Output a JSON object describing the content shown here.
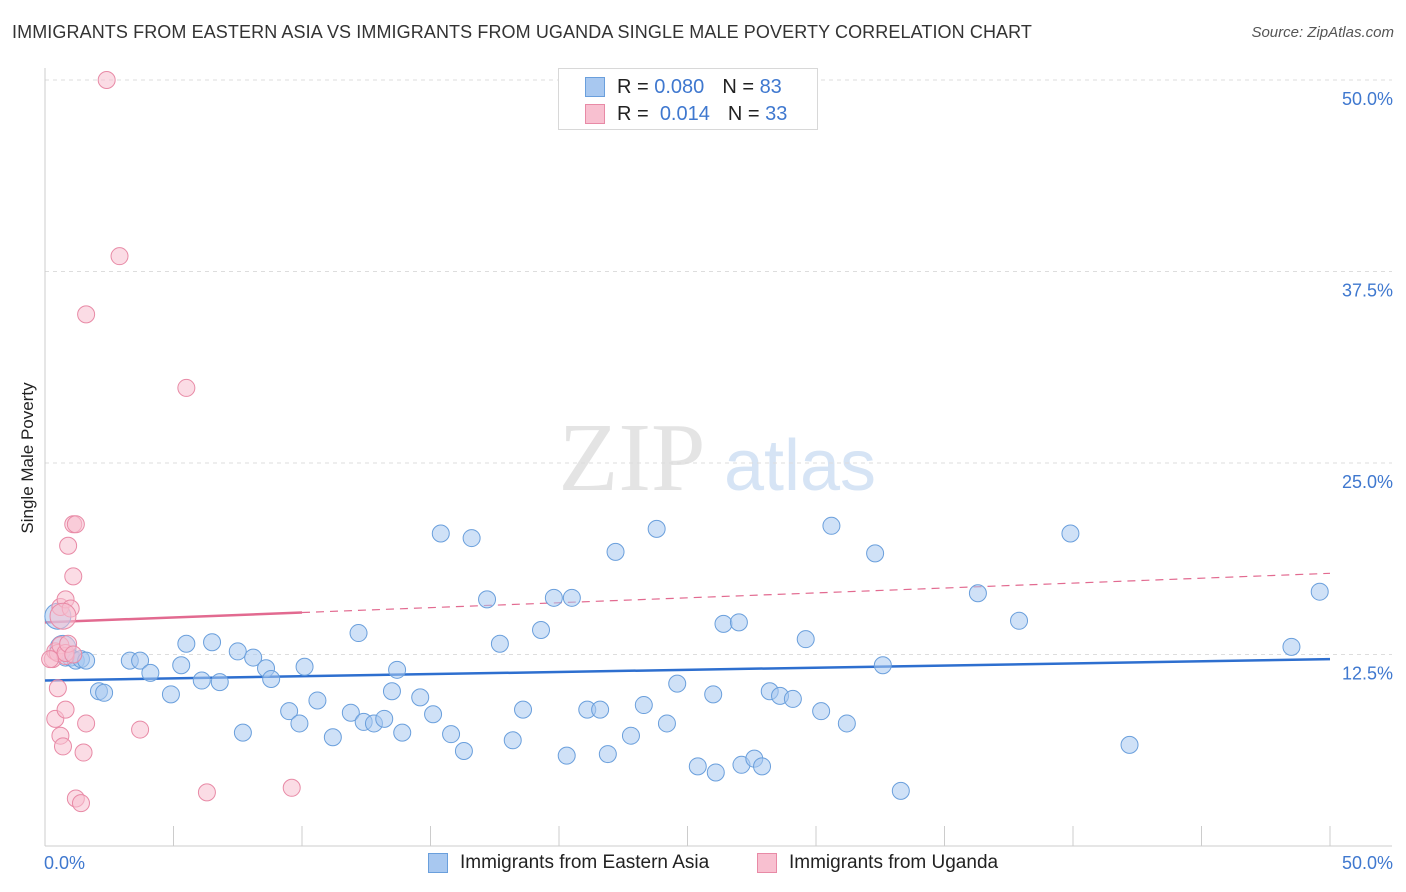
{
  "header": {
    "title": "IMMIGRANTS FROM EASTERN ASIA VS IMMIGRANTS FROM UGANDA SINGLE MALE POVERTY CORRELATION CHART",
    "source": "Source: ZipAtlas.com"
  },
  "watermark": {
    "zip": "ZIP",
    "atlas": "atlas"
  },
  "legend": {
    "rows": [
      {
        "r_label": "R =",
        "r_value": "0.080",
        "n_label": "N =",
        "n_value": "83",
        "color": "#a8c8f0",
        "border": "#6a9fdc"
      },
      {
        "r_label": "R =",
        "r_value": "0.014",
        "n_label": "N =",
        "n_value": "33",
        "color": "#f8c0d0",
        "border": "#e88aa6"
      }
    ]
  },
  "bottom_legend": {
    "series1": "Immigrants from Eastern Asia",
    "series2": "Immigrants from Uganda"
  },
  "chart_data": {
    "type": "scatter",
    "title": "IMMIGRANTS FROM EASTERN ASIA VS IMMIGRANTS FROM UGANDA SINGLE MALE POVERTY CORRELATION CHART",
    "ylabel": "Single Male Poverty",
    "xlabel": "",
    "xlim": [
      0,
      50
    ],
    "ylim": [
      0,
      50
    ],
    "x_tick_labels": [
      "0.0%",
      "50.0%"
    ],
    "y_tick_labels": [
      "12.5%",
      "25.0%",
      "37.5%",
      "50.0%"
    ],
    "y_ticks": [
      12.5,
      25.0,
      37.5,
      50.0
    ],
    "grid": "horizontal dashed",
    "legend_position": "top-center",
    "series": [
      {
        "name": "Immigrants from Eastern Asia",
        "color": "#a8c8f0",
        "stroke": "#6a9fdc",
        "trend_color": "#2e6fcf",
        "trend": {
          "x0": 0,
          "y0": 10.8,
          "x1": 50,
          "y1": 12.2
        },
        "points": [
          [
            0.5,
            15.0
          ],
          [
            0.7,
            12.9
          ],
          [
            0.8,
            12.3
          ],
          [
            1.0,
            12.3
          ],
          [
            1.2,
            12.1
          ],
          [
            1.4,
            12.2
          ],
          [
            1.6,
            12.1
          ],
          [
            2.1,
            10.1
          ],
          [
            2.3,
            10.0
          ],
          [
            3.3,
            12.1
          ],
          [
            3.7,
            12.1
          ],
          [
            4.1,
            11.3
          ],
          [
            4.9,
            9.9
          ],
          [
            5.3,
            11.8
          ],
          [
            5.5,
            13.2
          ],
          [
            6.1,
            10.8
          ],
          [
            6.5,
            13.3
          ],
          [
            6.8,
            10.7
          ],
          [
            7.5,
            12.7
          ],
          [
            7.7,
            7.4
          ],
          [
            8.1,
            12.3
          ],
          [
            8.6,
            11.6
          ],
          [
            8.8,
            10.9
          ],
          [
            9.5,
            8.8
          ],
          [
            9.9,
            8.0
          ],
          [
            10.1,
            11.7
          ],
          [
            10.6,
            9.5
          ],
          [
            11.2,
            7.1
          ],
          [
            11.9,
            8.7
          ],
          [
            12.2,
            13.9
          ],
          [
            12.4,
            8.1
          ],
          [
            12.8,
            8.0
          ],
          [
            13.2,
            8.3
          ],
          [
            13.5,
            10.1
          ],
          [
            13.7,
            11.5
          ],
          [
            13.9,
            7.4
          ],
          [
            14.6,
            9.7
          ],
          [
            15.1,
            8.6
          ],
          [
            15.4,
            20.4
          ],
          [
            15.8,
            7.3
          ],
          [
            16.3,
            6.2
          ],
          [
            16.6,
            20.1
          ],
          [
            17.2,
            16.1
          ],
          [
            17.7,
            13.2
          ],
          [
            18.2,
            6.9
          ],
          [
            18.6,
            8.9
          ],
          [
            19.3,
            14.1
          ],
          [
            19.8,
            16.2
          ],
          [
            20.3,
            5.9
          ],
          [
            20.5,
            16.2
          ],
          [
            21.1,
            8.9
          ],
          [
            21.6,
            8.9
          ],
          [
            21.9,
            6.0
          ],
          [
            22.2,
            19.2
          ],
          [
            22.8,
            7.2
          ],
          [
            23.3,
            9.2
          ],
          [
            23.8,
            20.7
          ],
          [
            24.2,
            8.0
          ],
          [
            24.6,
            10.6
          ],
          [
            25.4,
            5.2
          ],
          [
            26.0,
            9.9
          ],
          [
            26.1,
            4.8
          ],
          [
            26.4,
            14.5
          ],
          [
            27.0,
            14.6
          ],
          [
            27.1,
            5.3
          ],
          [
            27.6,
            5.7
          ],
          [
            27.9,
            5.2
          ],
          [
            28.2,
            10.1
          ],
          [
            28.6,
            9.8
          ],
          [
            29.1,
            9.6
          ],
          [
            29.6,
            13.5
          ],
          [
            30.2,
            8.8
          ],
          [
            30.6,
            20.9
          ],
          [
            31.2,
            8.0
          ],
          [
            32.3,
            19.1
          ],
          [
            32.6,
            11.8
          ],
          [
            33.3,
            3.6
          ],
          [
            36.3,
            16.5
          ],
          [
            37.9,
            14.7
          ],
          [
            39.9,
            20.4
          ],
          [
            42.2,
            6.6
          ],
          [
            48.5,
            13.0
          ],
          [
            49.6,
            16.6
          ]
        ]
      },
      {
        "name": "Immigrants from Uganda",
        "color": "#f8c0d0",
        "stroke": "#e88aa6",
        "trend_color": "#e26a90",
        "trend": {
          "x0": 0,
          "y0": 14.6,
          "x1": 50,
          "y1": 17.8,
          "solid_until_x": 10
        },
        "points": [
          [
            0.3,
            12.2
          ],
          [
            0.4,
            12.7
          ],
          [
            0.5,
            12.6
          ],
          [
            0.6,
            13.1
          ],
          [
            0.8,
            12.4
          ],
          [
            0.8,
            12.6
          ],
          [
            0.9,
            13.2
          ],
          [
            1.1,
            12.5
          ],
          [
            0.4,
            8.3
          ],
          [
            0.5,
            10.3
          ],
          [
            0.6,
            7.2
          ],
          [
            0.7,
            6.5
          ],
          [
            0.8,
            8.9
          ],
          [
            0.6,
            15.6
          ],
          [
            0.8,
            16.1
          ],
          [
            0.9,
            19.6
          ],
          [
            1.0,
            15.5
          ],
          [
            1.1,
            17.6
          ],
          [
            1.1,
            21.0
          ],
          [
            1.2,
            21.0
          ],
          [
            1.6,
            8.0
          ],
          [
            1.5,
            6.1
          ],
          [
            1.2,
            3.1
          ],
          [
            1.4,
            2.8
          ],
          [
            1.6,
            34.7
          ],
          [
            2.4,
            50.0
          ],
          [
            2.9,
            38.5
          ],
          [
            3.7,
            7.6
          ],
          [
            5.5,
            29.9
          ],
          [
            6.3,
            3.5
          ],
          [
            9.6,
            3.8
          ],
          [
            0.2,
            12.2
          ],
          [
            0.7,
            15.0
          ]
        ]
      }
    ]
  }
}
